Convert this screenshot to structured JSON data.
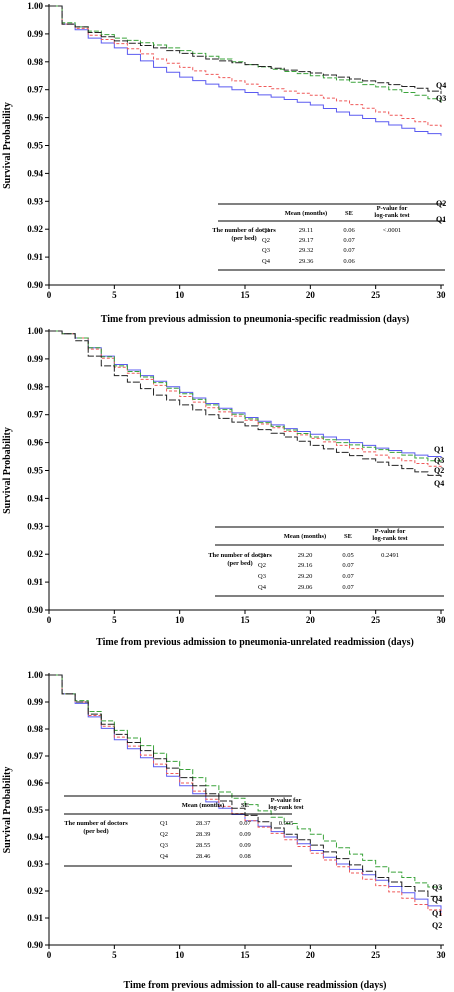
{
  "colors": {
    "Q1": "#5b5bf0",
    "Q2": "#ef5a5a",
    "Q3": "#3aa33a",
    "Q4": "#222222"
  },
  "chart_data": [
    {
      "type": "line",
      "ylabel": "Survival Probability",
      "xlabel": "Time from previous admission to pneumonia-specific readmission (days)",
      "xlim": [
        0,
        30
      ],
      "ylim": [
        0.9,
        1.0
      ],
      "xticks": [
        "0",
        "5",
        "10",
        "15",
        "20",
        "25",
        "30"
      ],
      "yticks": [
        "0.90",
        "0.91",
        "0.92",
        "0.93",
        "0.94",
        "0.95",
        "0.96",
        "0.97",
        "0.98",
        "0.99",
        "1.00"
      ],
      "series": [
        {
          "name": "Q1",
          "x": [
            0,
            1,
            2,
            3,
            5,
            8,
            10,
            12,
            15,
            18,
            20,
            22,
            25,
            28,
            30
          ],
          "y": [
            1.0,
            0.9935,
            0.9915,
            0.9885,
            0.985,
            0.978,
            0.9745,
            0.972,
            0.969,
            0.9665,
            0.9645,
            0.962,
            0.9585,
            0.955,
            0.9535
          ]
        },
        {
          "name": "Q2",
          "x": [
            0,
            1,
            2,
            3,
            5,
            8,
            10,
            12,
            15,
            18,
            20,
            22,
            25,
            28,
            30
          ],
          "y": [
            1.0,
            0.9935,
            0.992,
            0.9895,
            0.9865,
            0.981,
            0.978,
            0.9755,
            0.972,
            0.9695,
            0.968,
            0.966,
            0.962,
            0.9585,
            0.956
          ]
        },
        {
          "name": "Q3",
          "x": [
            0,
            1,
            2,
            3,
            5,
            8,
            10,
            12,
            15,
            18,
            20,
            22,
            25,
            28,
            30
          ],
          "y": [
            1.0,
            0.994,
            0.9925,
            0.991,
            0.9885,
            0.986,
            0.984,
            0.982,
            0.979,
            0.9765,
            0.975,
            0.9735,
            0.971,
            0.968,
            0.9655
          ]
        },
        {
          "name": "Q4",
          "x": [
            0,
            1,
            2,
            3,
            5,
            8,
            10,
            12,
            15,
            18,
            20,
            22,
            25,
            28,
            30
          ],
          "y": [
            1.0,
            0.9935,
            0.9925,
            0.9905,
            0.9875,
            0.985,
            0.983,
            0.981,
            0.979,
            0.977,
            0.976,
            0.9745,
            0.9725,
            0.9705,
            0.9685
          ]
        }
      ],
      "end_labels": [
        "Q4",
        "Q3",
        "Q2",
        "Q1"
      ],
      "table": {
        "header": [
          "Mean (months)",
          "SE",
          "P-value for log-rank test"
        ],
        "group_label": "The number of doctors (per bed)",
        "rows": [
          {
            "q": "Q1",
            "mean": "29.11",
            "se": "0.06",
            "p": "<.0001"
          },
          {
            "q": "Q2",
            "mean": "29.17",
            "se": "0.07",
            "p": ""
          },
          {
            "q": "Q3",
            "mean": "29.32",
            "se": "0.07",
            "p": ""
          },
          {
            "q": "Q4",
            "mean": "29.36",
            "se": "0.06",
            "p": ""
          }
        ]
      }
    },
    {
      "type": "line",
      "ylabel": "Survival Probability",
      "xlabel": "Time from previous admission to pneumonia-unrelated readmission (days)",
      "xlim": [
        0,
        30
      ],
      "ylim": [
        0.9,
        1.0
      ],
      "xticks": [
        "0",
        "5",
        "10",
        "15",
        "20",
        "25",
        "30"
      ],
      "yticks": [
        "0.90",
        "0.91",
        "0.92",
        "0.93",
        "0.94",
        "0.95",
        "0.96",
        "0.97",
        "0.98",
        "0.99",
        "1.00"
      ],
      "series": [
        {
          "name": "Q1",
          "x": [
            0,
            1,
            2,
            3,
            5,
            8,
            10,
            12,
            15,
            18,
            20,
            22,
            25,
            28,
            30
          ],
          "y": [
            1.0,
            0.999,
            0.9975,
            0.994,
            0.988,
            0.982,
            0.978,
            0.974,
            0.969,
            0.965,
            0.963,
            0.961,
            0.958,
            0.9555,
            0.9545
          ]
        },
        {
          "name": "Q2",
          "x": [
            0,
            1,
            2,
            3,
            5,
            8,
            10,
            12,
            15,
            18,
            20,
            22,
            25,
            28,
            30
          ],
          "y": [
            1.0,
            0.999,
            0.9975,
            0.9935,
            0.987,
            0.9805,
            0.9765,
            0.9725,
            0.968,
            0.964,
            0.9615,
            0.959,
            0.9555,
            0.9525,
            0.9505
          ]
        },
        {
          "name": "Q3",
          "x": [
            0,
            1,
            2,
            3,
            5,
            8,
            10,
            12,
            15,
            18,
            20,
            22,
            25,
            28,
            30
          ],
          "y": [
            1.0,
            0.999,
            0.9975,
            0.994,
            0.9875,
            0.9815,
            0.9775,
            0.9735,
            0.9685,
            0.9645,
            0.962,
            0.96,
            0.9575,
            0.9545,
            0.9525
          ]
        },
        {
          "name": "Q4",
          "x": [
            0,
            1,
            2,
            3,
            5,
            8,
            10,
            12,
            15,
            18,
            20,
            22,
            25,
            28,
            30
          ],
          "y": [
            1.0,
            0.999,
            0.9965,
            0.991,
            0.984,
            0.977,
            0.9735,
            0.97,
            0.966,
            0.962,
            0.959,
            0.9565,
            0.953,
            0.9495,
            0.947
          ]
        }
      ],
      "end_labels": [
        "Q1",
        "Q3",
        "Q2",
        "Q4"
      ],
      "table": {
        "header": [
          "Mean (months)",
          "SE",
          "P-value for log-rank test"
        ],
        "group_label": "The number of doctors (per bed)",
        "rows": [
          {
            "q": "Q1",
            "mean": "29.20",
            "se": "0.05",
            "p": "0.2491"
          },
          {
            "q": "Q2",
            "mean": "29.16",
            "se": "0.07",
            "p": ""
          },
          {
            "q": "Q3",
            "mean": "29.20",
            "se": "0.07",
            "p": ""
          },
          {
            "q": "Q4",
            "mean": "29.06",
            "se": "0.07",
            "p": ""
          }
        ]
      }
    },
    {
      "type": "line",
      "ylabel": "Survival Probability",
      "xlabel": "Time from previous admission to all-cause readmission (days)",
      "xlim": [
        0,
        30
      ],
      "ylim": [
        0.9,
        1.0
      ],
      "xticks": [
        "0",
        "5",
        "10",
        "15",
        "20",
        "25",
        "30"
      ],
      "yticks": [
        "0.90",
        "0.91",
        "0.92",
        "0.93",
        "0.94",
        "0.95",
        "0.96",
        "0.97",
        "0.98",
        "0.99",
        "1.00"
      ],
      "series": [
        {
          "name": "Q1",
          "x": [
            0,
            1,
            2,
            3,
            5,
            8,
            10,
            12,
            15,
            18,
            20,
            22,
            25,
            28,
            30
          ],
          "y": [
            1.0,
            0.993,
            0.9895,
            0.9845,
            0.976,
            0.966,
            0.959,
            0.953,
            0.946,
            0.94,
            0.935,
            0.93,
            0.924,
            0.917,
            0.912
          ]
        },
        {
          "name": "Q2",
          "x": [
            0,
            1,
            2,
            3,
            5,
            8,
            10,
            12,
            15,
            18,
            20,
            22,
            25,
            28,
            30
          ],
          "y": [
            1.0,
            0.993,
            0.99,
            0.985,
            0.977,
            0.967,
            0.96,
            0.954,
            0.946,
            0.939,
            0.934,
            0.929,
            0.922,
            0.915,
            0.911
          ]
        },
        {
          "name": "Q3",
          "x": [
            0,
            1,
            2,
            3,
            5,
            8,
            10,
            12,
            15,
            18,
            20,
            22,
            25,
            28,
            30
          ],
          "y": [
            1.0,
            0.993,
            0.9905,
            0.9865,
            0.9795,
            0.971,
            0.965,
            0.959,
            0.952,
            0.945,
            0.941,
            0.936,
            0.929,
            0.923,
            0.92
          ]
        },
        {
          "name": "Q4",
          "x": [
            0,
            1,
            2,
            3,
            5,
            8,
            10,
            12,
            15,
            18,
            20,
            22,
            25,
            28,
            30
          ],
          "y": [
            1.0,
            0.993,
            0.99,
            0.9855,
            0.978,
            0.969,
            0.962,
            0.956,
            0.948,
            0.941,
            0.937,
            0.932,
            0.925,
            0.92,
            0.916
          ]
        }
      ],
      "end_labels": [
        "Q3",
        "Q4",
        "Q1",
        "Q2"
      ],
      "table": {
        "header": [
          "Mean (months)",
          "SE",
          "P-value for log-rank test"
        ],
        "group_label": "The number of doctors (per bed)",
        "rows": [
          {
            "q": "Q1",
            "mean": "28.37",
            "se": "0.07",
            "p": "0.005"
          },
          {
            "q": "Q2",
            "mean": "28.39",
            "se": "0.09",
            "p": ""
          },
          {
            "q": "Q3",
            "mean": "28.55",
            "se": "0.09",
            "p": ""
          },
          {
            "q": "Q4",
            "mean": "28.46",
            "se": "0.08",
            "p": ""
          }
        ]
      }
    }
  ]
}
